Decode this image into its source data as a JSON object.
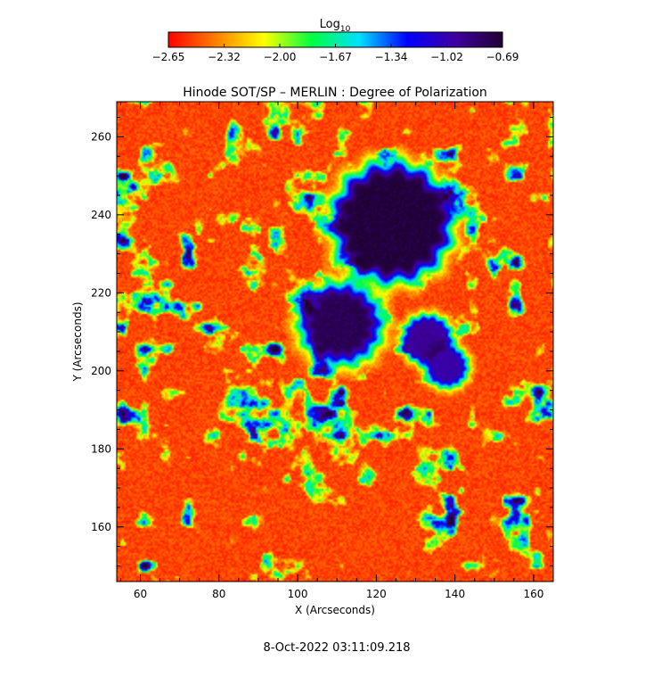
{
  "chart_data": {
    "type": "heatmap",
    "title": "Hinode SOT/SP – MERLIN : Degree of Polarization",
    "xlabel": "X (Arcseconds)",
    "ylabel": "Y (Arcseconds)",
    "xlim": [
      54,
      165
    ],
    "ylim": [
      146,
      269
    ],
    "x_ticks": [
      "60",
      "80",
      "100",
      "120",
      "140",
      "160"
    ],
    "y_ticks": [
      "160",
      "180",
      "200",
      "220",
      "240",
      "260"
    ],
    "colorbar": {
      "label_base": "Log",
      "label_sub": "10",
      "range": [
        -2.65,
        -0.69
      ],
      "ticks": [
        "−2.65",
        "−2.32",
        "−2.00",
        "−1.67",
        "−1.34",
        "−1.02",
        "−0.69"
      ],
      "colormap": [
        "#ff0000",
        "#ff8000",
        "#ffff00",
        "#00ff40",
        "#00e0ff",
        "#0000ff",
        "#4000a0",
        "#200030"
      ]
    },
    "features": {
      "umbra_main": {
        "center_x": 124,
        "center_y": 238,
        "radius": 11,
        "value": -0.72
      },
      "umbra_secondary": {
        "center_x": 111,
        "center_y": 212,
        "radius": 6,
        "value": -0.78
      },
      "pores": [
        {
          "center_x": 133,
          "center_y": 208,
          "radius": 4,
          "value": -0.95
        },
        {
          "center_x": 138,
          "center_y": 201,
          "radius": 3,
          "value": -1.0
        }
      ],
      "background_value": -2.5
    },
    "timestamp": "8-Oct-2022 03:11:09.218"
  }
}
